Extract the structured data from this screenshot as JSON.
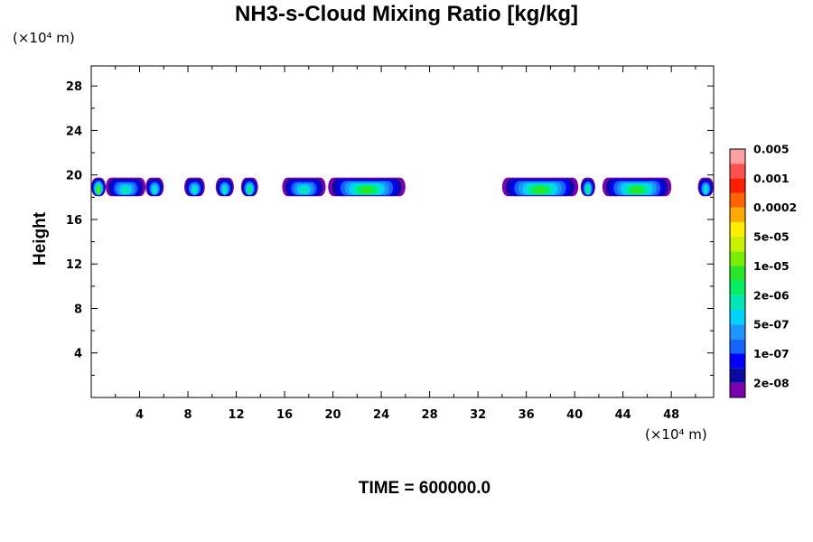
{
  "title": "NH3-s-Cloud Mixing Ratio [kg/kg]",
  "y_unit": "(×10⁴ m)",
  "x_unit": "(×10⁴ m)",
  "time_label": "TIME = 600000.0",
  "chart_data": {
    "type": "heatmap",
    "title": "NH3-s-Cloud Mixing Ratio [kg/kg]",
    "xlabel": "",
    "ylabel": "Height",
    "xlim": [
      0,
      51.5
    ],
    "ylim": [
      0,
      29.8
    ],
    "xticks": [
      4,
      8,
      12,
      16,
      20,
      24,
      28,
      32,
      36,
      40,
      44,
      48
    ],
    "yticks": [
      4,
      8,
      12,
      16,
      20,
      24,
      28
    ],
    "colorbar": {
      "colors": [
        "#7a00b0",
        "#0a0aa0",
        "#0000ff",
        "#1464ff",
        "#1e96ff",
        "#00d2ff",
        "#00e6b4",
        "#00ee64",
        "#28e628",
        "#78ee00",
        "#c8f000",
        "#ffee00",
        "#ffaa00",
        "#ff6400",
        "#ff1e00",
        "#ff5050",
        "#ffa0a0"
      ],
      "labels": [
        "2e-08",
        "1e-07",
        "5e-07",
        "2e-06",
        "1e-05",
        "5e-05",
        "0.0002",
        "0.001",
        "0.005"
      ]
    },
    "cloud_layer": {
      "height_range": [
        18,
        19.8
      ],
      "segments": [
        {
          "x": [
            0.0,
            1.2
          ],
          "peak": "1e-05"
        },
        {
          "x": [
            1.2,
            4.5
          ],
          "peak": "5e-06"
        },
        {
          "x": [
            4.5,
            6.0
          ],
          "peak": "5e-06"
        },
        {
          "x": [
            7.7,
            9.4
          ],
          "peak": "5e-06"
        },
        {
          "x": [
            10.3,
            11.8
          ],
          "peak": "5e-06"
        },
        {
          "x": [
            12.4,
            13.8
          ],
          "peak": "2e-06"
        },
        {
          "x": [
            15.8,
            19.4
          ],
          "peak": "5e-06"
        },
        {
          "x": [
            19.6,
            26.0
          ],
          "peak": "2e-05"
        },
        {
          "x": [
            34.0,
            40.3
          ],
          "peak": "2e-05"
        },
        {
          "x": [
            40.5,
            41.7
          ],
          "peak": "2e-06"
        },
        {
          "x": [
            42.3,
            48.0
          ],
          "peak": "2e-05"
        },
        {
          "x": [
            50.2,
            51.5
          ],
          "peak": "5e-06"
        }
      ]
    }
  }
}
